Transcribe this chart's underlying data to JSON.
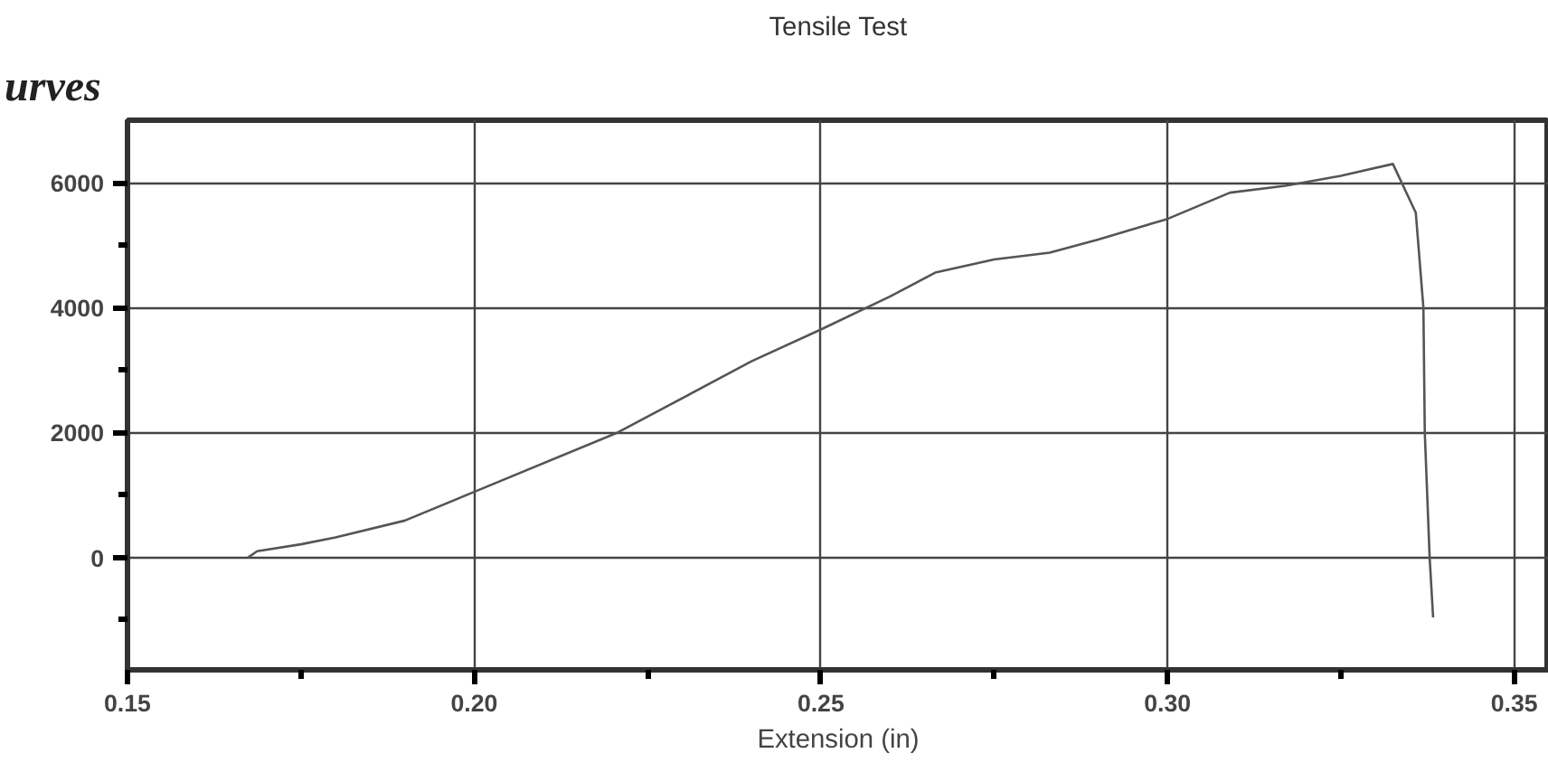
{
  "chart_data": {
    "type": "line",
    "title": "Tensile Test",
    "xlabel": "Extension (in)",
    "annotations": [
      "urves"
    ],
    "x": [
      0.1674,
      0.1687,
      0.175,
      0.18,
      0.19,
      0.2,
      0.2207,
      0.24,
      0.25,
      0.26,
      0.2665,
      0.275,
      0.283,
      0.29,
      0.3,
      0.309,
      0.317,
      0.325,
      0.3325,
      0.3358,
      0.3369,
      0.3371,
      0.3378,
      0.3383
    ],
    "series": [
      {
        "color": "#555555",
        "values": [
          0,
          100,
          210,
          320,
          590,
          1050,
          2000,
          3140,
          3650,
          4180,
          4560,
          4770,
          4880,
          5090,
          5420,
          5840,
          5950,
          6110,
          6300,
          5520,
          4000,
          2000,
          0,
          -960
        ]
      }
    ],
    "xlim": [
      0.15,
      0.355
    ],
    "ylim": [
      -1800,
      7000
    ],
    "xticks": [
      {
        "value": 0.15,
        "label": "0.15"
      },
      {
        "value": 0.2,
        "label": "0.20"
      },
      {
        "value": 0.25,
        "label": "0.25"
      },
      {
        "value": 0.3,
        "label": "0.30"
      },
      {
        "value": 0.35,
        "label": "0.35"
      },
      {
        "value": 0.175,
        "label": null
      },
      {
        "value": 0.225,
        "label": null
      },
      {
        "value": 0.275,
        "label": null
      },
      {
        "value": 0.325,
        "label": null
      }
    ],
    "yticks": [
      0,
      2000,
      4000,
      6000,
      {
        "value": -1000,
        "label": null
      },
      {
        "value": 1000,
        "label": null
      },
      {
        "value": 3000,
        "label": null
      },
      {
        "value": 5000,
        "label": null
      }
    ],
    "grid": true,
    "marker": "none",
    "line_style": "solid"
  }
}
